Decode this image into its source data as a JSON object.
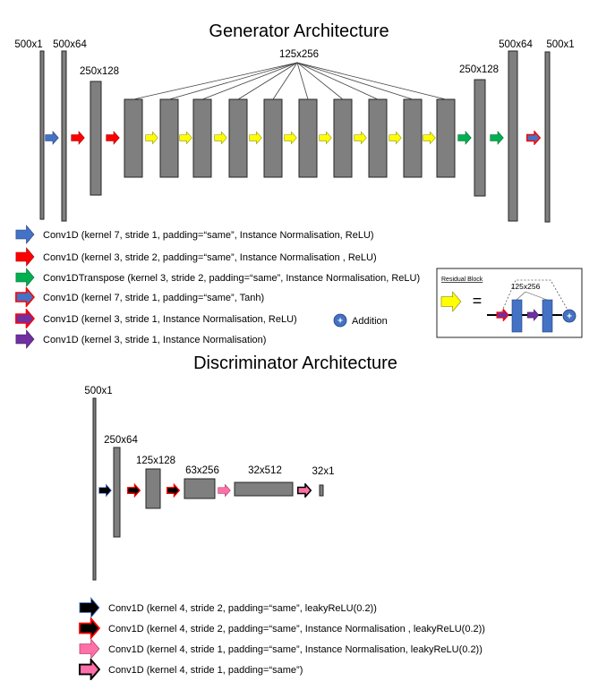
{
  "generator": {
    "title": "Generator Architecture",
    "labels": {
      "input": "500x1",
      "conv1": "500x64",
      "down1": "250x128",
      "residual": "125x256",
      "up1": "250x128",
      "up2": "500x64",
      "output": "500x1"
    },
    "legend": [
      {
        "arrow": "blue",
        "text": "Conv1D (kernel 7, stride 1, padding=“same”, Instance Normalisation, ReLU)"
      },
      {
        "arrow": "red",
        "text": "Conv1D (kernel 3, stride 2, padding=“same”, Instance Normalisation , ReLU)"
      },
      {
        "arrow": "green",
        "text": "Conv1DTranspose (kernel 3, stride 2, padding=“same”, Instance Normalisation, ReLU)"
      },
      {
        "arrow": "blue-red-outline",
        "text": "Conv1D (kernel 7, stride 1, padding=“same”, Tanh)"
      },
      {
        "arrow": "purple-red-outline",
        "text": "Conv1D (kernel 3, stride 1, Instance Normalisation, ReLU)"
      },
      {
        "arrow": "purple",
        "text": "Conv1D (kernel 3, stride 1, Instance Normalisation)"
      }
    ],
    "addition_label": "Addition",
    "addition_symbol": "+",
    "residual_block": {
      "title": "Residual Block",
      "equals": "=",
      "size_label": "125x256"
    }
  },
  "discriminator": {
    "title": "Discriminator Architecture",
    "labels": {
      "input": "500x1",
      "l1": "250x64",
      "l2": "125x128",
      "l3": "63x256",
      "l4": "32x512",
      "l5": "32x1"
    },
    "legend": [
      {
        "arrow": "black",
        "text": "Conv1D (kernel 4, stride 2, padding=“same”, leakyReLU(0.2))"
      },
      {
        "arrow": "black-red-outline",
        "text": "Conv1D (kernel 4, stride 2, padding=“same”, Instance Normalisation , leakyReLU(0.2))"
      },
      {
        "arrow": "pink",
        "text": "Conv1D (kernel 4, stride 1, padding=“same”, Instance Normalisation, leakyReLU(0.2))"
      },
      {
        "arrow": "pink-black-outline",
        "text": "Conv1D (kernel 4, stride 1, padding=“same”)"
      }
    ]
  },
  "colors": {
    "bar": "#7f7f7f",
    "blue": "#4472c4",
    "red": "#ff0000",
    "green": "#00b050",
    "yellow": "#ffff00",
    "purple": "#7030a0",
    "pink": "#ff6fa8",
    "black": "#000000"
  }
}
